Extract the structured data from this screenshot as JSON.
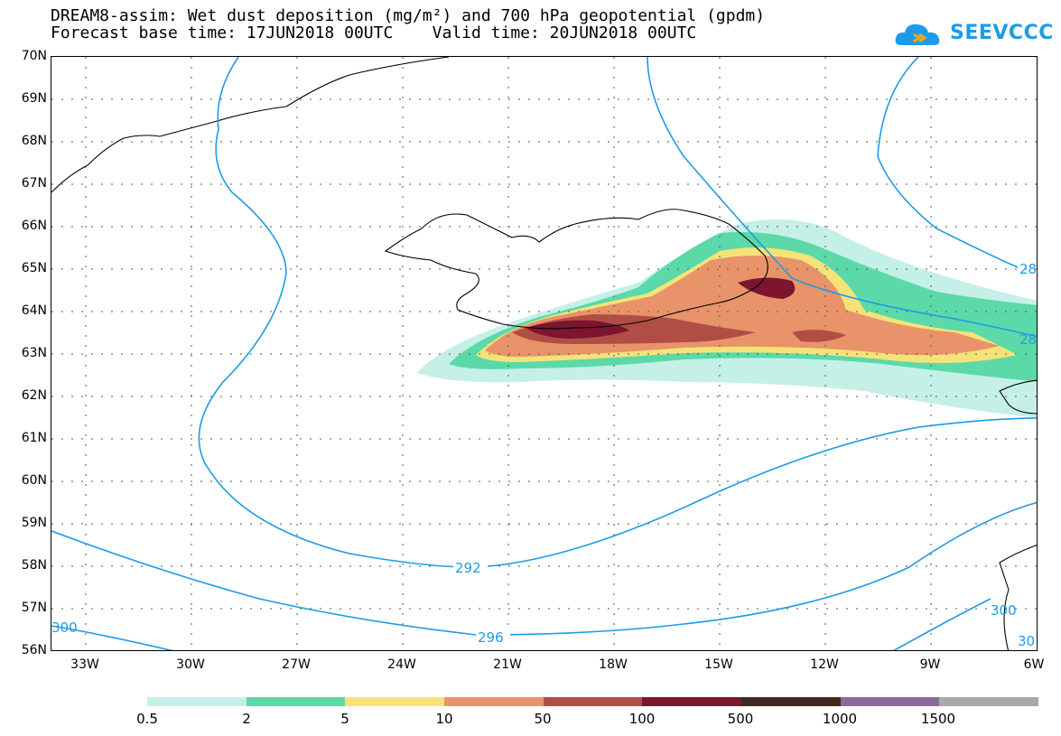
{
  "title": {
    "line1": "DREAM8-assim: Wet dust deposition (mg/m²) and 700 hPa geopotential (gpdm)",
    "line2": "Forecast base time: 17JUN2018 00UTC    Valid time: 20JUN2018 00UTC"
  },
  "logo": {
    "text": "SEEVCCC",
    "color": "#1e9be6"
  },
  "lat_labels": [
    "70N",
    "69N",
    "68N",
    "67N",
    "66N",
    "65N",
    "64N",
    "63N",
    "62N",
    "61N",
    "60N",
    "59N",
    "58N",
    "57N",
    "56N"
  ],
  "lon_labels": [
    "33W",
    "30W",
    "27W",
    "24W",
    "21W",
    "18W",
    "15W",
    "12W",
    "9W",
    "6W"
  ],
  "contour_labels": [
    "292",
    "296",
    "300",
    "28",
    "28",
    "300",
    "30"
  ],
  "legend": {
    "labels": [
      "0.5",
      "2",
      "5",
      "10",
      "50",
      "100",
      "500",
      "1000",
      "1500"
    ],
    "colors": [
      "#c4f0e8",
      "#5bd9a8",
      "#f5e37a",
      "#e9936a",
      "#b04e45",
      "#7d1430",
      "#3c2a1e",
      "#8b6a9a",
      "#a9a9a9"
    ]
  },
  "colors": {
    "contour": "#1e9be6",
    "coast": "#000000",
    "grid": "#555555"
  }
}
